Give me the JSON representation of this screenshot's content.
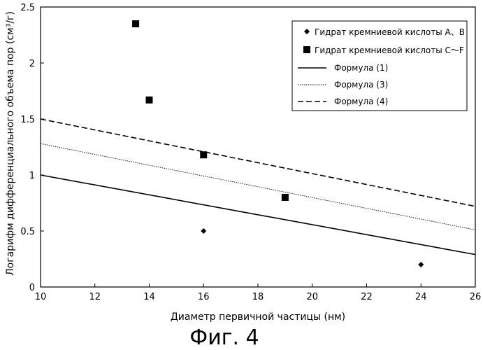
{
  "chart_data": {
    "type": "scatter",
    "xlabel": "Диаметр первичной частицы (нм)",
    "ylabel": "Логарифм дифференциального объема пор (см³/г)",
    "xlim": [
      10,
      26
    ],
    "ylim": [
      0,
      2.5
    ],
    "x_ticks": [
      10,
      12,
      14,
      16,
      18,
      20,
      22,
      24,
      26
    ],
    "y_ticks": [
      0,
      0.5,
      1,
      1.5,
      2,
      2.5
    ],
    "x_tick_labels": [
      "10",
      "12",
      "14",
      "16",
      "18",
      "20",
      "22",
      "24",
      "26"
    ],
    "y_tick_labels": [
      "0",
      "0.5",
      "1",
      "1.5",
      "2",
      "2.5"
    ],
    "grid": false,
    "legend_position": "top-right",
    "series": [
      {
        "name": "Гидрат кремниевой кислоты A、B",
        "kind": "points",
        "marker": "diamond",
        "points": [
          {
            "x": 16,
            "y": 0.5
          },
          {
            "x": 24,
            "y": 0.2
          }
        ]
      },
      {
        "name": "Гидрат кремниевой кислоты C〜F",
        "kind": "points",
        "marker": "square",
        "points": [
          {
            "x": 13.5,
            "y": 2.35
          },
          {
            "x": 14,
            "y": 1.67
          },
          {
            "x": 16,
            "y": 1.18
          },
          {
            "x": 19,
            "y": 0.8
          }
        ]
      },
      {
        "name": "Формула (1)",
        "kind": "line",
        "dash": "solid",
        "points": [
          {
            "x": 10,
            "y": 1.0
          },
          {
            "x": 26,
            "y": 0.29
          }
        ]
      },
      {
        "name": "Формула (3)",
        "kind": "line",
        "dash": "dotted",
        "points": [
          {
            "x": 10,
            "y": 1.28
          },
          {
            "x": 26,
            "y": 0.51
          }
        ]
      },
      {
        "name": "Формула (4)",
        "kind": "line",
        "dash": "dashed",
        "points": [
          {
            "x": 10,
            "y": 1.5
          },
          {
            "x": 26,
            "y": 0.72
          }
        ]
      }
    ]
  },
  "caption": "Фиг. 4"
}
